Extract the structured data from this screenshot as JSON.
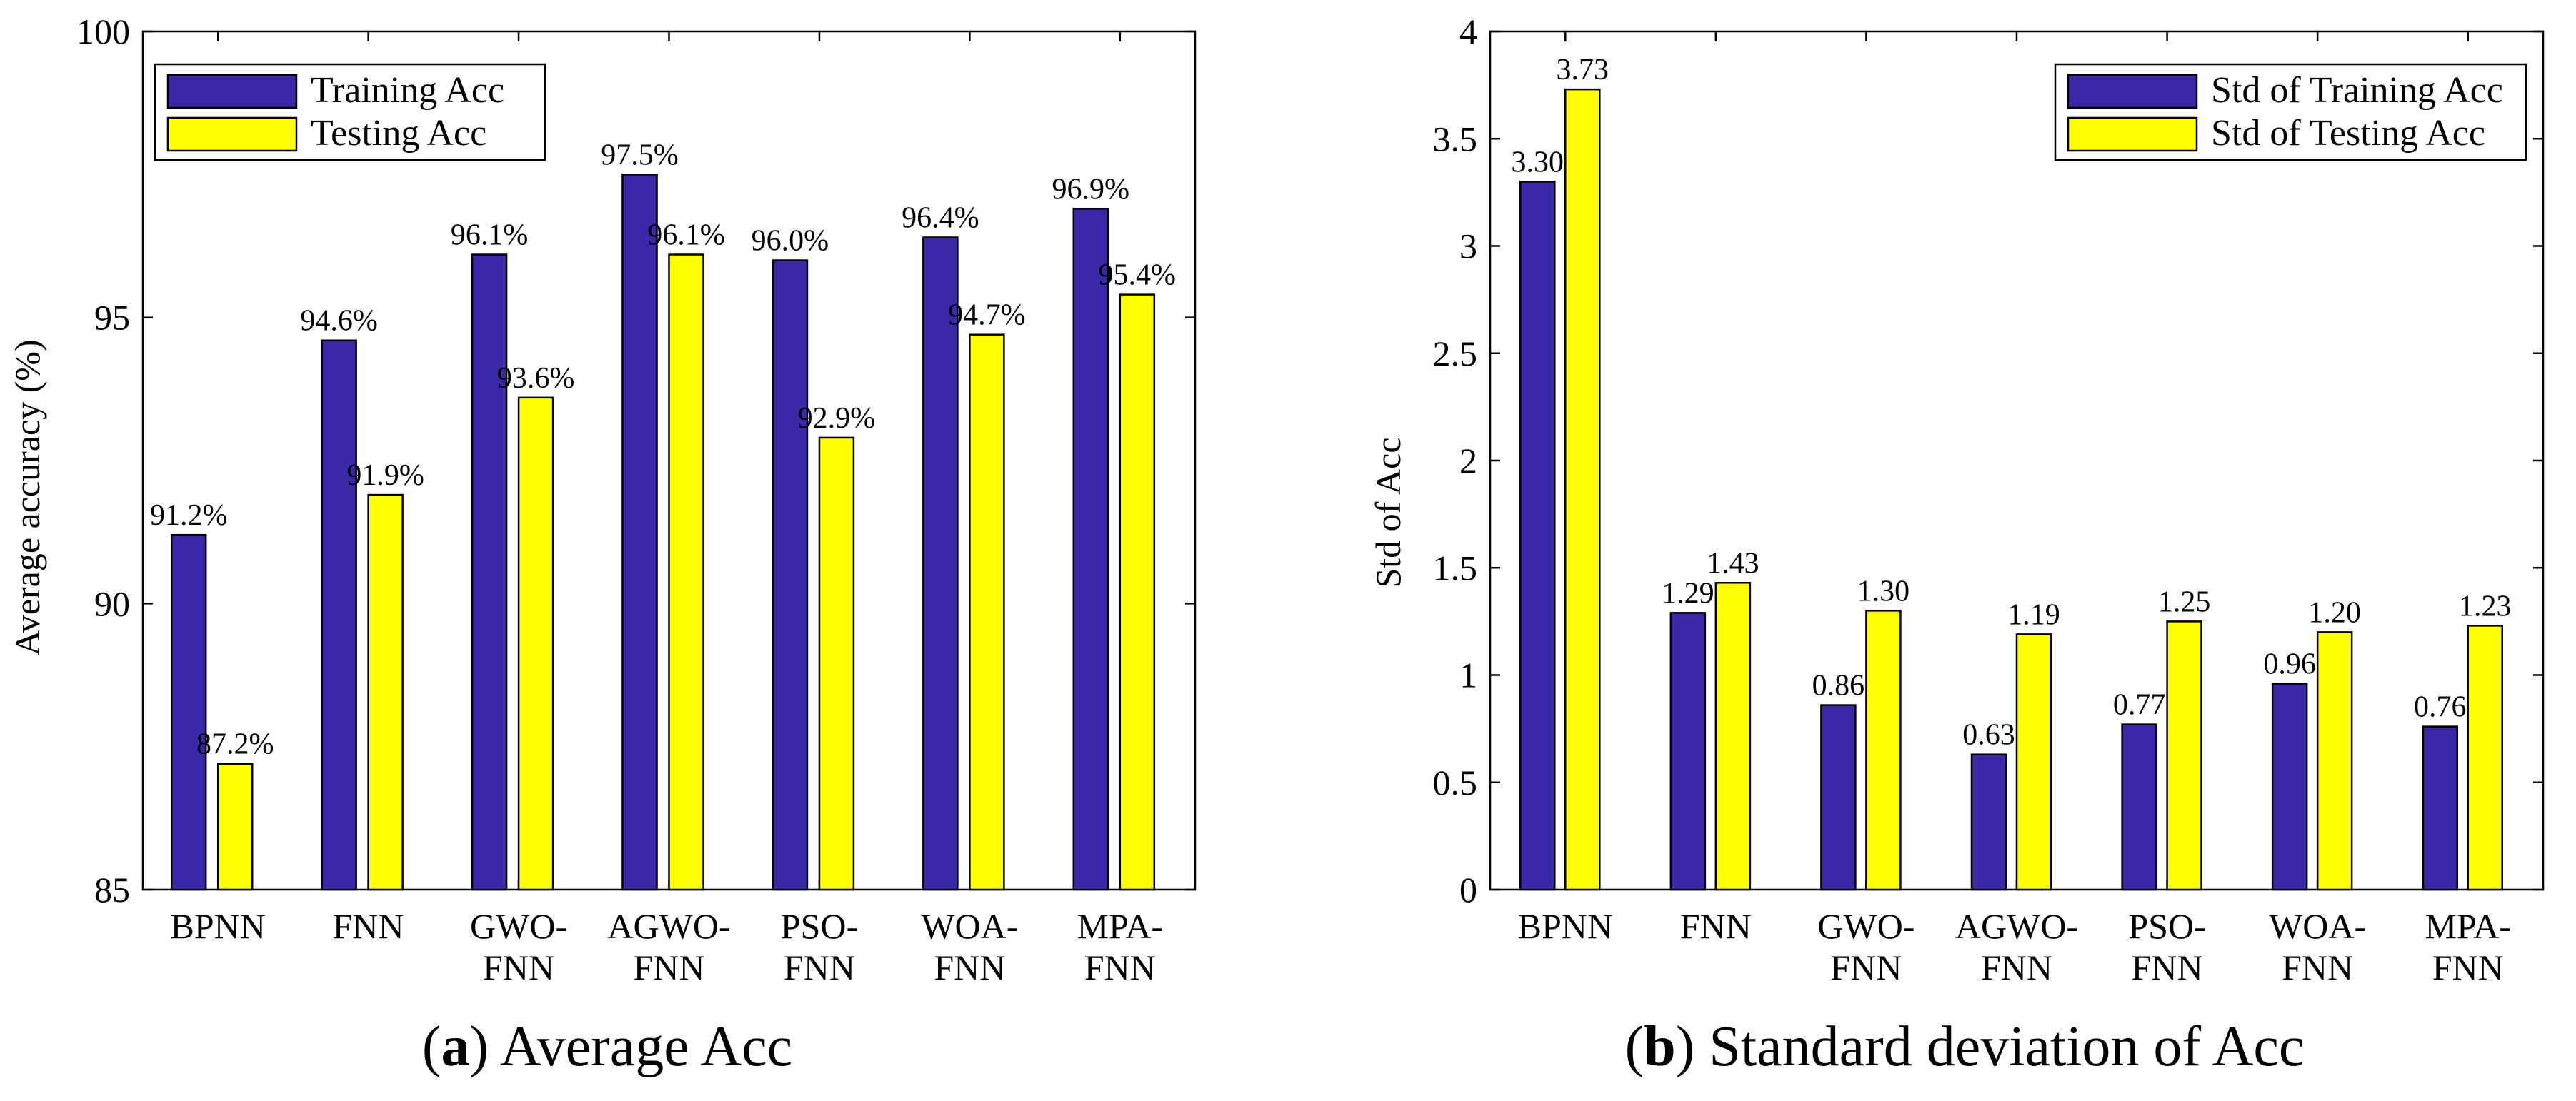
{
  "colors": {
    "training": "#3a28a8",
    "testing": "#ffff00",
    "axis": "#000000"
  },
  "chart_data": [
    {
      "type": "bar",
      "caption_letter": "a",
      "caption_text": "Average Acc",
      "ylabel": "Average accuracy (%)",
      "xlabel": "",
      "ylim": [
        85,
        100
      ],
      "yticks": [
        "85",
        "90",
        "95",
        "100"
      ],
      "categories": [
        [
          "BPNN"
        ],
        [
          "FNN"
        ],
        [
          "GWO-",
          "FNN"
        ],
        [
          "AGWO-",
          "FNN"
        ],
        [
          "PSO-",
          "FNN"
        ],
        [
          "WOA-",
          "FNN"
        ],
        [
          "MPA-",
          "FNN"
        ]
      ],
      "legend": [
        "Training Acc",
        "Testing  Acc"
      ],
      "legend_position": "top-left",
      "series": [
        {
          "name": "Training Acc",
          "values": [
            91.2,
            94.6,
            96.1,
            97.5,
            96.0,
            96.4,
            96.9
          ],
          "labels": [
            "91.2%",
            "94.6%",
            "96.1%",
            "97.5%",
            "96.0%",
            "96.4%",
            "96.9%"
          ]
        },
        {
          "name": "Testing Acc",
          "values": [
            87.2,
            91.9,
            93.6,
            96.1,
            92.9,
            94.7,
            95.4
          ],
          "labels": [
            "87.2%",
            "91.9%",
            "93.6%",
            "96.1%",
            "92.9%",
            "94.7%",
            "95.4%"
          ]
        }
      ]
    },
    {
      "type": "bar",
      "caption_letter": "b",
      "caption_text": "Standard deviation of Acc",
      "ylabel": "Std of Acc",
      "xlabel": "",
      "ylim": [
        0,
        4
      ],
      "yticks": [
        "0",
        "0.5",
        "1",
        "1.5",
        "2",
        "2.5",
        "3",
        "3.5",
        "4"
      ],
      "categories": [
        [
          "BPNN"
        ],
        [
          "FNN"
        ],
        [
          "GWO-",
          "FNN"
        ],
        [
          "AGWO-",
          "FNN"
        ],
        [
          "PSO-",
          "FNN"
        ],
        [
          "WOA-",
          "FNN"
        ],
        [
          "MPA-",
          "FNN"
        ]
      ],
      "legend": [
        "Std of Training Acc",
        "Std of Testing Acc"
      ],
      "legend_position": "top-right",
      "series": [
        {
          "name": "Std of Training Acc",
          "values": [
            3.3,
            1.29,
            0.86,
            0.63,
            0.77,
            0.96,
            0.76
          ],
          "labels": [
            "3.30",
            "1.29",
            "0.86",
            "0.63",
            "0.77",
            "0.96",
            "0.76"
          ]
        },
        {
          "name": "Std of Testing Acc",
          "values": [
            3.73,
            1.43,
            1.3,
            1.19,
            1.25,
            1.2,
            1.23
          ],
          "labels": [
            "3.73",
            "1.43",
            "1.30",
            "1.19",
            "1.25",
            "1.20",
            "1.23"
          ]
        }
      ]
    }
  ]
}
